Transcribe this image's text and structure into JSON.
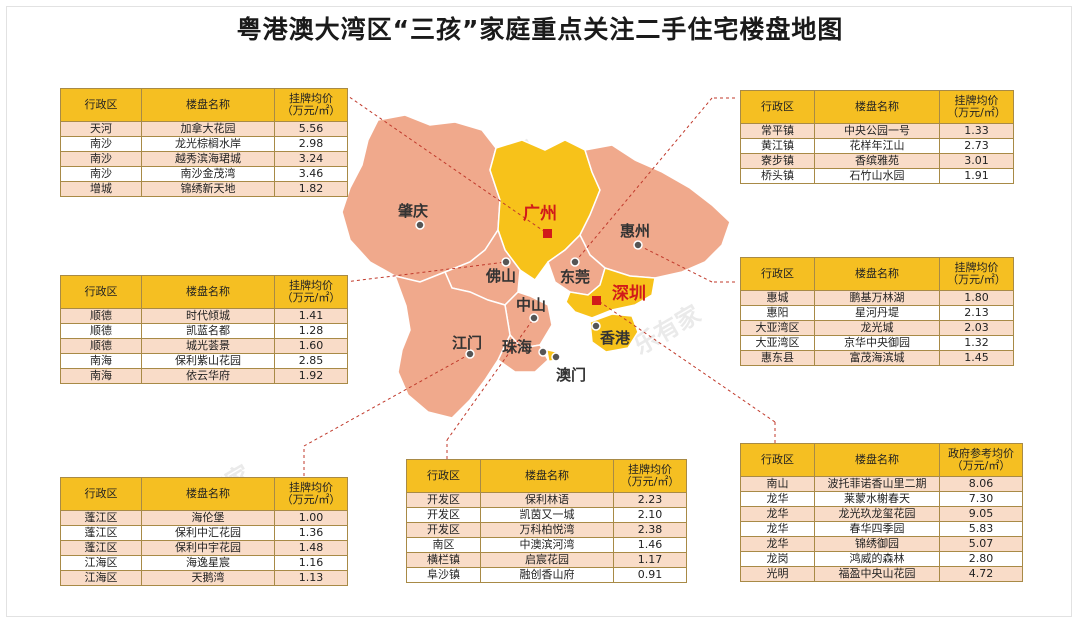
{
  "title": "粤港澳大湾区“三孩”家庭重点关注二手住宅楼盘地图",
  "watermark": "乐有家",
  "colors": {
    "header": "#f5bf22",
    "row": "#f9dcc8",
    "region_salmon": "#f0a98c",
    "region_yellow": "#f7c21a",
    "leader": "#c0392b"
  },
  "cities": {
    "zhaoqing": "肇庆",
    "guangzhou": "广州",
    "huizhou": "惠州",
    "foshan": "佛山",
    "dongguan": "东莞",
    "shenzhen": "深圳",
    "zhongshan": "中山",
    "jiangmen": "江门",
    "zhuhai": "珠海",
    "hongkong": "香港",
    "macau": "澳门"
  },
  "tables": {
    "guangzhou": {
      "headers": [
        "行政区",
        "楼盘名称",
        "挂牌均价",
        "（万元/㎡）"
      ],
      "rows": [
        [
          "天河",
          "加拿大花园",
          "5.56"
        ],
        [
          "南沙",
          "龙光棕榈水岸",
          "2.98"
        ],
        [
          "南沙",
          "越秀滨海珺城",
          "3.24"
        ],
        [
          "南沙",
          "南沙金茂湾",
          "3.46"
        ],
        [
          "增城",
          "锦绣新天地",
          "1.82"
        ]
      ]
    },
    "foshan": {
      "headers": [
        "行政区",
        "楼盘名称",
        "挂牌均价",
        "（万元/㎡）"
      ],
      "rows": [
        [
          "顺德",
          "时代倾城",
          "1.41"
        ],
        [
          "顺德",
          "凯蓝名都",
          "1.28"
        ],
        [
          "顺德",
          "城光荟景",
          "1.60"
        ],
        [
          "南海",
          "保利紫山花园",
          "2.85"
        ],
        [
          "南海",
          "依云华府",
          "1.92"
        ]
      ]
    },
    "jiangmen": {
      "headers": [
        "行政区",
        "楼盘名称",
        "挂牌均价",
        "（万元/㎡）"
      ],
      "rows": [
        [
          "蓬江区",
          "海伦堡",
          "1.00"
        ],
        [
          "蓬江区",
          "保利中汇花园",
          "1.36"
        ],
        [
          "蓬江区",
          "保利中宇花园",
          "1.48"
        ],
        [
          "江海区",
          "海逸星宸",
          "1.16"
        ],
        [
          "江海区",
          "天鹅湾",
          "1.13"
        ]
      ]
    },
    "zhongshan": {
      "headers": [
        "行政区",
        "楼盘名称",
        "挂牌均价",
        "（万元/㎡）"
      ],
      "rows": [
        [
          "开发区",
          "保利林语",
          "2.23"
        ],
        [
          "开发区",
          "凯茵又一城",
          "2.10"
        ],
        [
          "开发区",
          "万科柏悦湾",
          "2.38"
        ],
        [
          "南区",
          "中澳滨河湾",
          "1.46"
        ],
        [
          "横栏镇",
          "启宸花园",
          "1.17"
        ],
        [
          "阜沙镇",
          "融创香山府",
          "0.91"
        ]
      ]
    },
    "dongguan": {
      "headers": [
        "行政区",
        "楼盘名称",
        "挂牌均价",
        "（万元/㎡）"
      ],
      "rows": [
        [
          "常平镇",
          "中央公园一号",
          "1.33"
        ],
        [
          "黄江镇",
          "花样年江山",
          "2.73"
        ],
        [
          "寮步镇",
          "香缤雅苑",
          "3.01"
        ],
        [
          "桥头镇",
          "石竹山水园",
          "1.91"
        ]
      ]
    },
    "huizhou": {
      "headers": [
        "行政区",
        "楼盘名称",
        "挂牌均价",
        "（万元/㎡）"
      ],
      "rows": [
        [
          "惠城",
          "鹏基万林湖",
          "1.80"
        ],
        [
          "惠阳",
          "星河丹堤",
          "2.13"
        ],
        [
          "大亚湾区",
          "龙光城",
          "2.03"
        ],
        [
          "大亚湾区",
          "京华中央御园",
          "1.32"
        ],
        [
          "惠东县",
          "富茂海滨城",
          "1.45"
        ]
      ]
    },
    "shenzhen": {
      "headers": [
        "行政区",
        "楼盘名称",
        "政府参考均价",
        "（万元/㎡）"
      ],
      "rows": [
        [
          "南山",
          "波托菲诺香山里二期",
          "8.06"
        ],
        [
          "龙华",
          "莱蒙水榭春天",
          "7.30"
        ],
        [
          "龙华",
          "龙光玖龙玺花园",
          "9.05"
        ],
        [
          "龙华",
          "春华四季园",
          "5.83"
        ],
        [
          "龙华",
          "锦绣御园",
          "5.07"
        ],
        [
          "龙岗",
          "鸿威的森林",
          "2.80"
        ],
        [
          "光明",
          "福盈中央山花园",
          "4.72"
        ]
      ]
    }
  }
}
